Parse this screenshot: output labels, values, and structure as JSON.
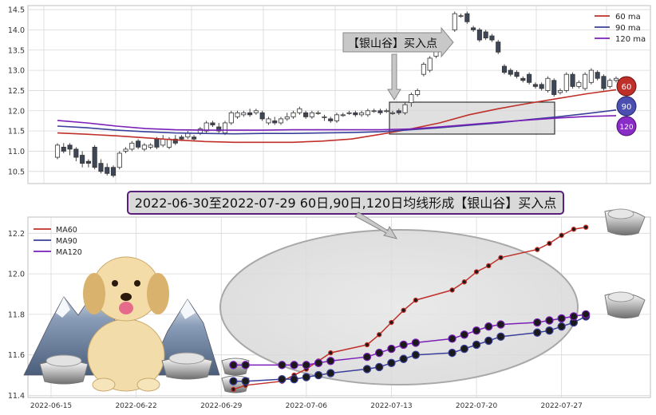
{
  "colors": {
    "ma60": "#c0302a",
    "ma90": "#3a3f9a",
    "ma120": "#7a1fb8",
    "candle_up": "#ffffff",
    "candle_down": "#3e4758",
    "grid": "#d8d8d8",
    "panel_bg": "#ffffff",
    "highlight_box": "#d6d6d6",
    "ellipse": "#dcdcdc",
    "banner_bg": "#d9d9d9",
    "banner_border": "#5a1f7a"
  },
  "top_chart": {
    "legend": [
      {
        "label": "60 ma",
        "color": "#c0302a"
      },
      {
        "label": "90 ma",
        "color": "#3a3f9a"
      },
      {
        "label": "120 ma",
        "color": "#7a1fb8"
      }
    ],
    "callout": "【银山谷】买入点",
    "badges": {
      "b60": "60",
      "b90": "90",
      "b120": "120"
    }
  },
  "banner": "2022-06-30至2022-07-29 60日,90日,120日均线形成【银山谷】买入点",
  "bottom_chart": {
    "legend": [
      {
        "label": "MA60",
        "color": "#c0302a"
      },
      {
        "label": "MA90",
        "color": "#3a3f9a"
      },
      {
        "label": "MA120",
        "color": "#7a1fb8"
      }
    ]
  },
  "chart_data": [
    {
      "type": "candlestick",
      "ylim": [
        10.2,
        14.6
      ],
      "yticks": [
        "10.5",
        "11.0",
        "11.5",
        "12.0",
        "12.5",
        "13.0",
        "13.5",
        "14.0",
        "14.5"
      ],
      "grid": true,
      "legend_placement": "top-right",
      "candles": [
        [
          10.85,
          11.15,
          11.2,
          10.8
        ],
        [
          11.1,
          11.0,
          11.2,
          10.95
        ],
        [
          11.15,
          11.05,
          11.2,
          10.9
        ],
        [
          11.05,
          10.85,
          11.1,
          10.75
        ],
        [
          10.9,
          10.7,
          11.0,
          10.6
        ],
        [
          10.75,
          10.7,
          10.8,
          10.6
        ],
        [
          11.1,
          10.6,
          11.15,
          10.55
        ],
        [
          10.7,
          10.5,
          10.8,
          10.45
        ],
        [
          10.6,
          10.45,
          10.7,
          10.4
        ],
        [
          10.6,
          10.4,
          10.65,
          10.35
        ],
        [
          10.6,
          10.95,
          11.0,
          10.55
        ],
        [
          11.0,
          11.05,
          11.1,
          10.95
        ],
        [
          11.05,
          11.2,
          11.25,
          11.0
        ],
        [
          11.25,
          11.1,
          11.3,
          11.05
        ],
        [
          11.05,
          11.15,
          11.2,
          11.0
        ],
        [
          11.1,
          11.15,
          11.2,
          11.05
        ],
        [
          11.3,
          11.1,
          11.35,
          11.05
        ],
        [
          11.15,
          11.3,
          11.4,
          11.1
        ],
        [
          11.1,
          11.3,
          11.35,
          11.05
        ],
        [
          11.3,
          11.2,
          11.4,
          11.15
        ],
        [
          11.35,
          11.3,
          11.4,
          11.25
        ],
        [
          11.35,
          11.45,
          11.5,
          11.3
        ],
        [
          11.35,
          11.3,
          11.4,
          11.25
        ],
        [
          11.45,
          11.55,
          11.6,
          11.4
        ],
        [
          11.5,
          11.7,
          11.75,
          11.45
        ],
        [
          11.7,
          11.65,
          11.75,
          11.6
        ],
        [
          11.6,
          11.5,
          11.7,
          11.45
        ],
        [
          11.45,
          11.7,
          11.75,
          11.4
        ],
        [
          11.7,
          11.95,
          12.0,
          11.65
        ],
        [
          11.85,
          11.95,
          12.0,
          11.8
        ],
        [
          11.9,
          11.95,
          12.0,
          11.85
        ],
        [
          11.95,
          11.9,
          12.05,
          11.85
        ],
        [
          11.95,
          12.0,
          12.05,
          11.9
        ],
        [
          11.95,
          11.8,
          12.0,
          11.75
        ],
        [
          11.7,
          11.8,
          11.85,
          11.65
        ],
        [
          11.75,
          11.7,
          11.85,
          11.65
        ],
        [
          11.7,
          11.8,
          11.85,
          11.65
        ],
        [
          11.8,
          11.85,
          11.95,
          11.75
        ],
        [
          11.85,
          11.95,
          12.0,
          11.8
        ],
        [
          11.95,
          12.05,
          12.1,
          11.9
        ],
        [
          11.95,
          11.85,
          12.0,
          11.8
        ],
        [
          11.85,
          11.95,
          12.0,
          11.8
        ],
        [
          11.95,
          11.95,
          12.0,
          11.9
        ],
        [
          11.85,
          11.85,
          11.9,
          11.75
        ],
        [
          11.8,
          11.75,
          11.85,
          11.7
        ],
        [
          11.75,
          11.9,
          11.95,
          11.7
        ],
        [
          11.9,
          11.9,
          11.95,
          11.85
        ],
        [
          11.95,
          11.95,
          12.0,
          11.9
        ],
        [
          11.95,
          11.9,
          12.0,
          11.85
        ],
        [
          11.9,
          11.95,
          12.0,
          11.85
        ],
        [
          11.9,
          12.0,
          12.05,
          11.85
        ],
        [
          12.0,
          12.0,
          12.05,
          11.95
        ],
        [
          12.0,
          11.95,
          12.05,
          11.9
        ],
        [
          12.0,
          12.0,
          12.05,
          11.95
        ],
        [
          11.95,
          11.95,
          12.0,
          11.9
        ],
        [
          12.0,
          11.95,
          12.05,
          11.9
        ],
        [
          11.95,
          12.15,
          12.2,
          11.9
        ],
        [
          12.2,
          12.4,
          12.45,
          12.1
        ],
        [
          12.4,
          12.5,
          12.55,
          12.35
        ],
        [
          12.9,
          13.15,
          13.2,
          12.85
        ],
        [
          13.0,
          13.3,
          13.35,
          12.95
        ],
        [
          13.35,
          13.5,
          13.55,
          13.3
        ],
        [
          13.5,
          13.8,
          13.85,
          13.45
        ],
        [
          13.75,
          13.7,
          13.85,
          13.65
        ],
        [
          14.0,
          14.4,
          14.45,
          13.95
        ],
        [
          14.35,
          14.35,
          14.4,
          14.3
        ],
        [
          14.4,
          14.2,
          14.45,
          14.15
        ],
        [
          14.05,
          14.0,
          14.1,
          13.95
        ],
        [
          14.0,
          13.75,
          14.05,
          13.7
        ],
        [
          13.95,
          13.8,
          14.0,
          13.75
        ],
        [
          13.85,
          13.75,
          13.9,
          13.7
        ],
        [
          13.7,
          13.45,
          13.75,
          13.4
        ],
        [
          13.1,
          12.95,
          13.15,
          12.9
        ],
        [
          13.0,
          12.9,
          13.05,
          12.85
        ],
        [
          12.95,
          12.85,
          13.0,
          12.8
        ],
        [
          12.8,
          12.75,
          12.85,
          12.7
        ],
        [
          12.9,
          12.7,
          12.95,
          12.65
        ],
        [
          12.65,
          12.6,
          12.7,
          12.55
        ],
        [
          12.65,
          12.55,
          12.7,
          12.5
        ],
        [
          12.5,
          12.8,
          12.85,
          12.45
        ],
        [
          12.75,
          12.4,
          12.8,
          12.35
        ],
        [
          12.45,
          12.5,
          12.55,
          12.4
        ],
        [
          12.5,
          12.9,
          12.95,
          12.45
        ],
        [
          12.9,
          12.6,
          12.95,
          12.55
        ],
        [
          12.6,
          12.7,
          12.75,
          12.55
        ],
        [
          12.55,
          12.9,
          12.95,
          12.5
        ],
        [
          12.7,
          13.0,
          13.05,
          12.65
        ],
        [
          12.95,
          12.8,
          13.0,
          12.75
        ],
        [
          12.85,
          12.55,
          12.9,
          12.5
        ],
        [
          12.6,
          12.75,
          12.8,
          12.55
        ],
        [
          12.75,
          12.8,
          12.85,
          12.7
        ]
      ],
      "ma60": [
        11.45,
        11.42,
        11.38,
        11.33,
        11.28,
        11.24,
        11.22,
        11.22,
        11.22,
        11.25,
        11.3,
        11.42,
        11.55,
        11.7,
        11.9,
        12.05,
        12.18,
        12.3,
        12.42,
        12.52
      ],
      "ma90": [
        11.62,
        11.58,
        11.52,
        11.48,
        11.45,
        11.44,
        11.43,
        11.44,
        11.44,
        11.45,
        11.46,
        11.48,
        11.53,
        11.58,
        11.64,
        11.7,
        11.78,
        11.85,
        11.93,
        12.02
      ],
      "ma120": [
        11.76,
        11.7,
        11.62,
        11.56,
        11.53,
        11.52,
        11.52,
        11.52,
        11.53,
        11.53,
        11.53,
        11.53,
        11.55,
        11.6,
        11.66,
        11.72,
        11.77,
        11.82,
        11.86,
        11.88
      ]
    },
    {
      "type": "line",
      "x": [
        "2022-06-30",
        "2022-07-01",
        "2022-07-04",
        "2022-07-05",
        "2022-07-06",
        "2022-07-07",
        "2022-07-08",
        "2022-07-11",
        "2022-07-12",
        "2022-07-13",
        "2022-07-14",
        "2022-07-15",
        "2022-07-18",
        "2022-07-19",
        "2022-07-20",
        "2022-07-21",
        "2022-07-22",
        "2022-07-25",
        "2022-07-26",
        "2022-07-27",
        "2022-07-28",
        "2022-07-29"
      ],
      "xticks": [
        "2022-06-15",
        "2022-06-22",
        "2022-06-29",
        "2022-07-06",
        "2022-07-13",
        "2022-07-20",
        "2022-07-27"
      ],
      "yticks": [
        "11.4",
        "11.6",
        "11.8",
        "12.0",
        "12.2"
      ],
      "ylim": [
        11.39,
        12.28
      ],
      "grid": true,
      "legend_placement": "top-left",
      "series": [
        {
          "name": "MA60",
          "values": [
            11.43,
            11.45,
            11.47,
            11.5,
            11.53,
            11.57,
            11.61,
            11.65,
            11.7,
            11.76,
            11.82,
            11.87,
            11.92,
            11.96,
            12.01,
            12.04,
            12.08,
            12.12,
            12.15,
            12.19,
            12.22,
            12.23
          ]
        },
        {
          "name": "MA90",
          "values": [
            11.47,
            11.47,
            11.48,
            11.48,
            11.49,
            11.5,
            11.51,
            11.53,
            11.54,
            11.56,
            11.58,
            11.6,
            11.61,
            11.63,
            11.65,
            11.67,
            11.69,
            11.71,
            11.72,
            11.74,
            11.76,
            11.79
          ]
        },
        {
          "name": "MA120",
          "values": [
            11.55,
            11.55,
            11.55,
            11.55,
            11.55,
            11.56,
            11.57,
            11.59,
            11.61,
            11.63,
            11.65,
            11.66,
            11.68,
            11.7,
            11.72,
            11.74,
            11.75,
            11.76,
            11.77,
            11.78,
            11.79,
            11.8
          ]
        }
      ]
    }
  ]
}
